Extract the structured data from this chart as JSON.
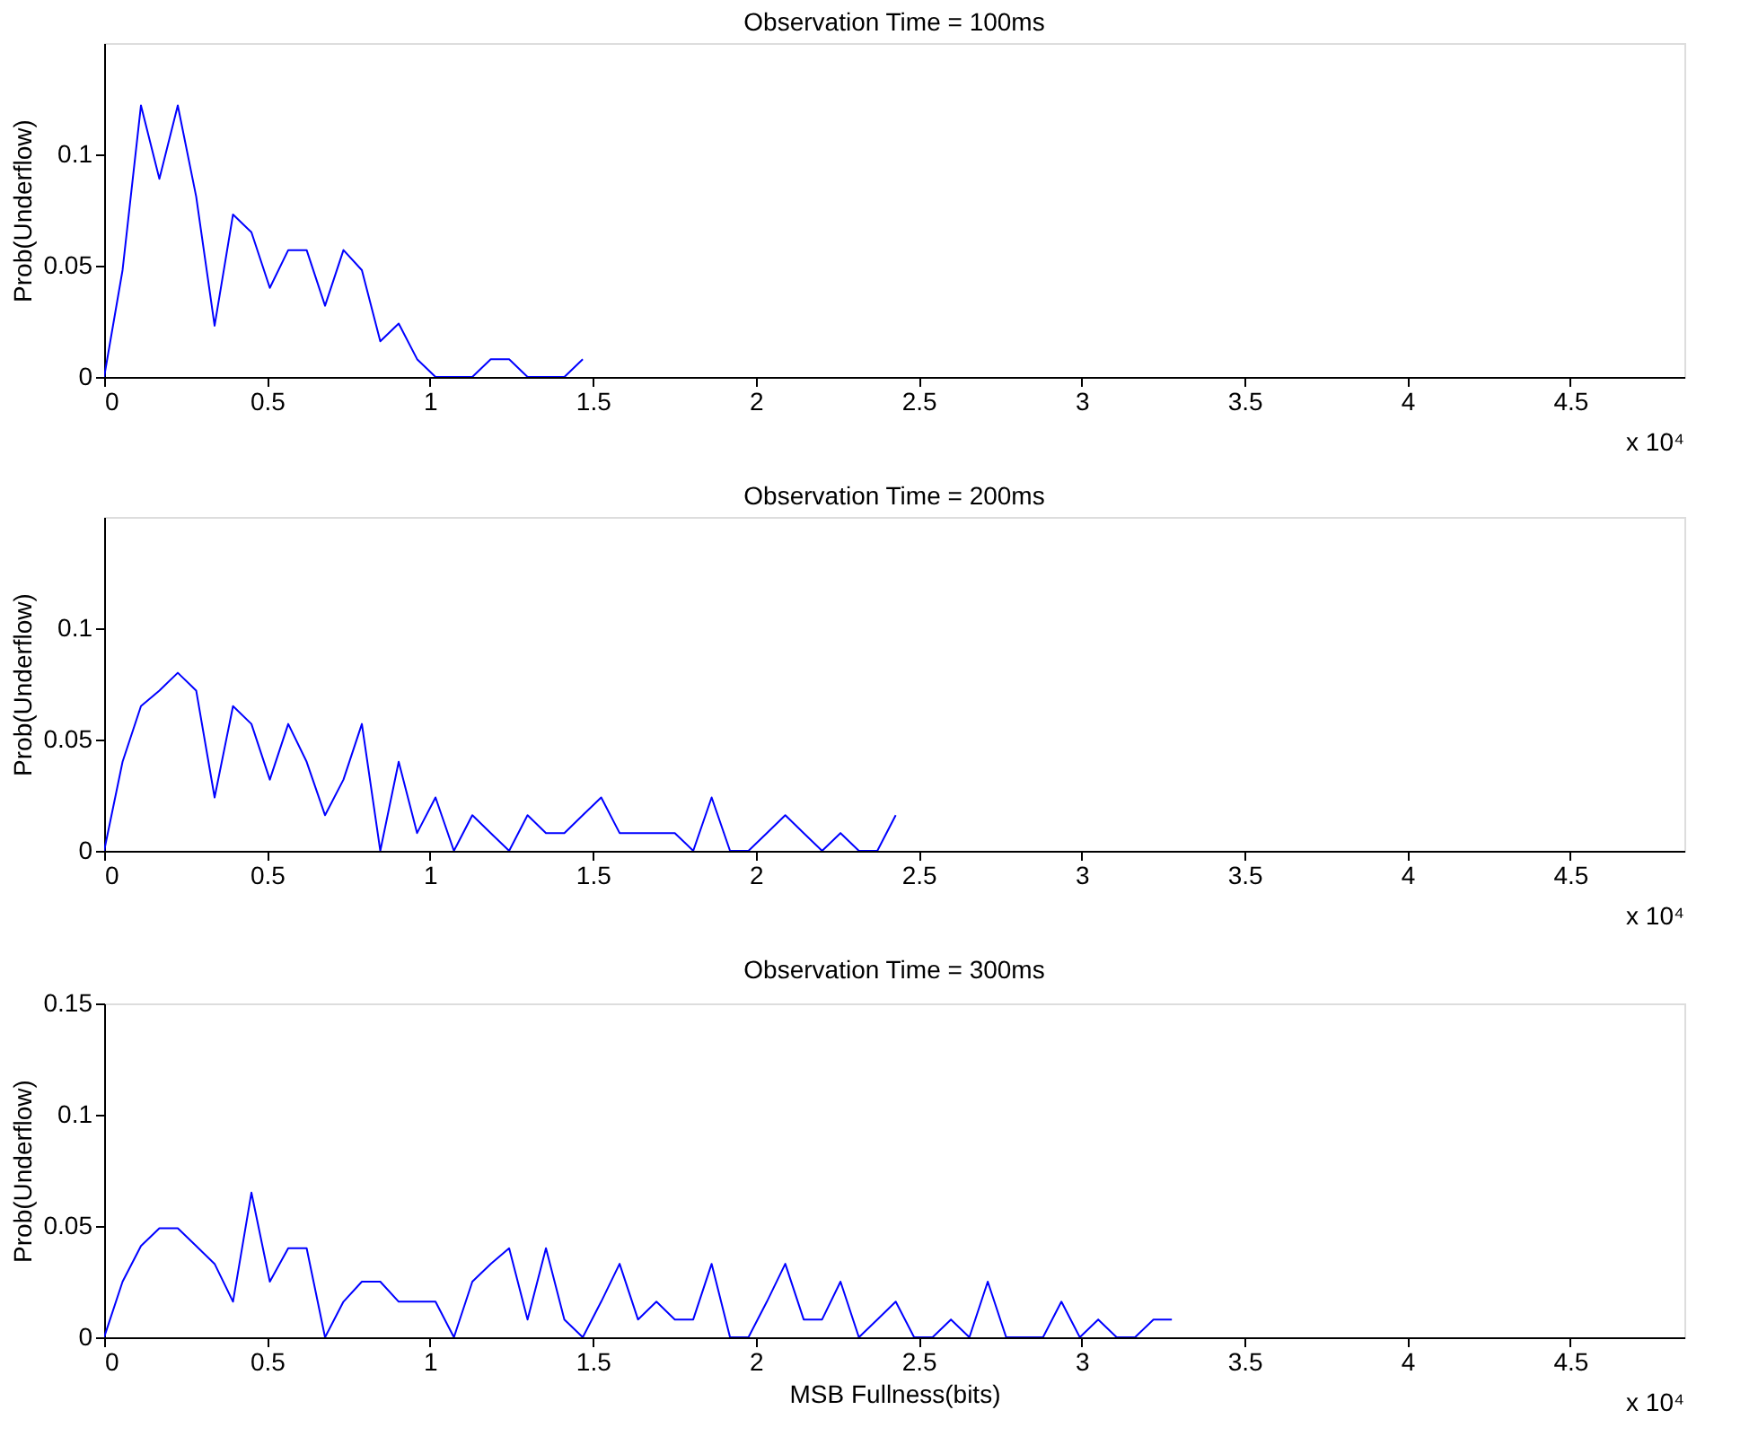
{
  "chart_data": [
    {
      "type": "line",
      "title": "Observation Time = 100ms",
      "ylabel": "Prob(Underflow)",
      "annotations": [
        "x 10⁴"
      ],
      "series": [
        {
          "color": "#0000ff",
          "x": [
            0,
            0.0565,
            0.113,
            0.1695,
            0.226,
            0.2825,
            0.339,
            0.3955,
            0.452,
            0.5085,
            0.565,
            0.6215,
            0.678,
            0.7345,
            0.791,
            0.8475,
            0.904,
            0.9605,
            1.017,
            1.0735,
            1.13,
            1.1865,
            1.243,
            1.2995,
            1.356,
            1.4125,
            1.469
          ],
          "values": [
            0,
            0.048,
            0.122,
            0.089,
            0.122,
            0.081,
            0.023,
            0.073,
            0.065,
            0.04,
            0.057,
            0.057,
            0.032,
            0.057,
            0.048,
            0.016,
            0.024,
            0.008,
            0,
            0,
            0,
            0.008,
            0.008,
            0,
            0,
            0,
            0.008
          ]
        }
      ],
      "xlim": [
        0,
        4.85
      ],
      "xticks": [
        0,
        0.5,
        1,
        1.5,
        2,
        2.5,
        3,
        3.5,
        4,
        4.5
      ],
      "ylim": [
        0,
        0.15
      ],
      "yticks": [
        0,
        0.05,
        0.1
      ],
      "grid": false
    },
    {
      "type": "line",
      "title": "Observation Time = 200ms",
      "ylabel": "Prob(Underflow)",
      "annotations": [
        "x 10⁴"
      ],
      "series": [
        {
          "color": "#0000ff",
          "x": [
            0,
            0.0565,
            0.113,
            0.1695,
            0.226,
            0.2825,
            0.339,
            0.3955,
            0.452,
            0.5085,
            0.565,
            0.6215,
            0.678,
            0.7345,
            0.791,
            0.8475,
            0.904,
            0.9605,
            1.017,
            1.0735,
            1.13,
            1.1865,
            1.243,
            1.2995,
            1.356,
            1.4125,
            1.469,
            1.5255,
            1.582,
            1.6385,
            1.695,
            1.7515,
            1.808,
            1.8645,
            1.921,
            1.9775,
            2.034,
            2.0905,
            2.147,
            2.2035,
            2.26,
            2.3165,
            2.373,
            2.4295
          ],
          "values": [
            0,
            0.04,
            0.065,
            0.072,
            0.08,
            0.072,
            0.024,
            0.065,
            0.057,
            0.032,
            0.057,
            0.04,
            0.016,
            0.032,
            0.057,
            0,
            0.04,
            0.008,
            0.024,
            0,
            0.016,
            0.008,
            0,
            0.016,
            0.008,
            0.008,
            0.016,
            0.024,
            0.008,
            0.008,
            0.008,
            0.008,
            0,
            0.024,
            0,
            0,
            0.008,
            0.016,
            0.008,
            0,
            0.008,
            0,
            0,
            0.016
          ]
        }
      ],
      "xlim": [
        0,
        4.85
      ],
      "xticks": [
        0,
        0.5,
        1,
        1.5,
        2,
        2.5,
        3,
        3.5,
        4,
        4.5
      ],
      "ylim": [
        0,
        0.15
      ],
      "yticks": [
        0,
        0.05,
        0.1
      ],
      "grid": false
    },
    {
      "type": "line",
      "title": "Observation Time = 300ms",
      "xlabel": "MSB Fullness(bits)",
      "ylabel": "Prob(Underflow)",
      "annotations": [
        "x 10⁴"
      ],
      "series": [
        {
          "color": "#0000ff",
          "x": [
            0,
            0.0565,
            0.113,
            0.1695,
            0.226,
            0.2825,
            0.339,
            0.3955,
            0.452,
            0.5085,
            0.565,
            0.6215,
            0.678,
            0.7345,
            0.791,
            0.8475,
            0.904,
            0.9605,
            1.017,
            1.0735,
            1.13,
            1.1865,
            1.243,
            1.2995,
            1.356,
            1.4125,
            1.469,
            1.5255,
            1.582,
            1.6385,
            1.695,
            1.7515,
            1.808,
            1.8645,
            1.921,
            1.9775,
            2.034,
            2.0905,
            2.147,
            2.2035,
            2.26,
            2.3165,
            2.373,
            2.4295,
            2.486,
            2.5425,
            2.599,
            2.6555,
            2.712,
            2.7685,
            2.825,
            2.8815,
            2.938,
            2.9945,
            3.051,
            3.1075,
            3.164,
            3.2205,
            3.277
          ],
          "values": [
            0,
            0.025,
            0.041,
            0.049,
            0.049,
            0.041,
            0.033,
            0.016,
            0.065,
            0.025,
            0.04,
            0.04,
            0,
            0.016,
            0.025,
            0.025,
            0.016,
            0.016,
            0.016,
            0,
            0.025,
            0.033,
            0.04,
            0.008,
            0.04,
            0.008,
            0,
            0.016,
            0.033,
            0.008,
            0.016,
            0.008,
            0.008,
            0.033,
            0,
            0,
            0.016,
            0.033,
            0.008,
            0.008,
            0.025,
            0,
            0.008,
            0.016,
            0,
            0,
            0.008,
            0,
            0.025,
            0,
            0,
            0,
            0.016,
            0,
            0.008,
            0,
            0,
            0.008,
            0.008
          ]
        }
      ],
      "xlim": [
        0,
        4.85
      ],
      "xticks": [
        0,
        0.5,
        1,
        1.5,
        2,
        2.5,
        3,
        3.5,
        4,
        4.5
      ],
      "ylim": [
        0,
        0.15
      ],
      "yticks": [
        0,
        0.05,
        0.1,
        0.15
      ],
      "grid": false
    }
  ]
}
